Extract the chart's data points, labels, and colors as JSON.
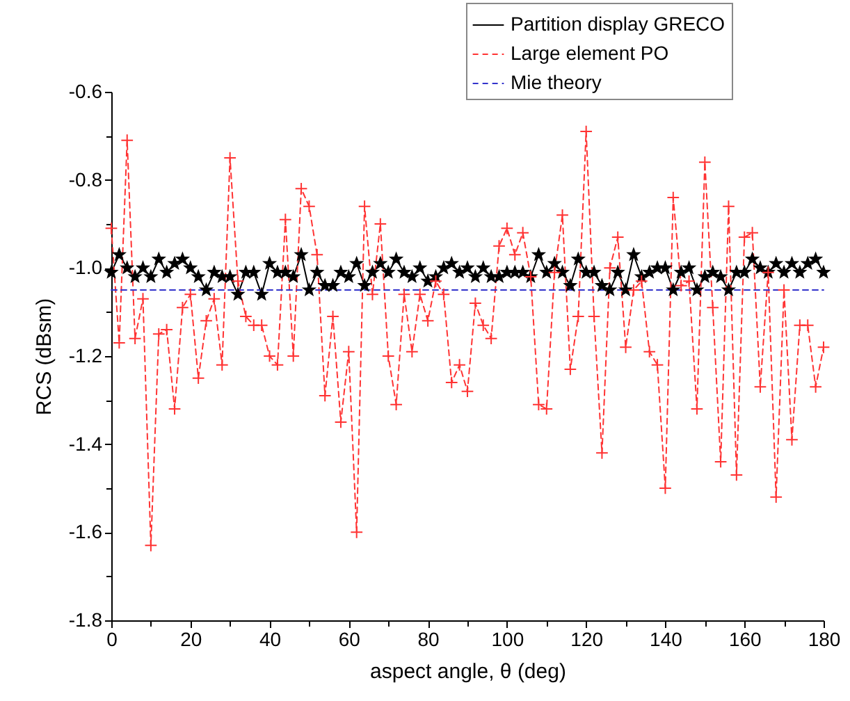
{
  "chart_data": {
    "type": "line",
    "xlabel": "aspect angle, θ (deg)",
    "ylabel": "RCS (dBsm)",
    "x": [
      0,
      2,
      4,
      6,
      8,
      10,
      12,
      14,
      16,
      18,
      20,
      22,
      24,
      26,
      28,
      30,
      32,
      34,
      36,
      38,
      40,
      42,
      44,
      46,
      48,
      50,
      52,
      54,
      56,
      58,
      60,
      62,
      64,
      66,
      68,
      70,
      72,
      74,
      76,
      78,
      80,
      82,
      84,
      86,
      88,
      90,
      92,
      94,
      96,
      98,
      100,
      102,
      104,
      106,
      108,
      110,
      112,
      114,
      116,
      118,
      120,
      122,
      124,
      126,
      128,
      130,
      132,
      134,
      136,
      138,
      140,
      142,
      144,
      146,
      148,
      150,
      152,
      154,
      156,
      158,
      160,
      162,
      164,
      166,
      168,
      170,
      172,
      174,
      176,
      178,
      180
    ],
    "series": [
      {
        "name": "Partition display GRECO",
        "color": "#000000",
        "marker": "star",
        "line_style": "solid",
        "values": [
          -1.01,
          -0.97,
          -1.0,
          -1.02,
          -1.0,
          -1.02,
          -0.98,
          -1.01,
          -0.99,
          -0.98,
          -1.0,
          -1.02,
          -1.05,
          -1.01,
          -1.02,
          -1.02,
          -1.06,
          -1.01,
          -1.01,
          -1.06,
          -0.99,
          -1.01,
          -1.01,
          -1.02,
          -0.97,
          -1.05,
          -1.01,
          -1.04,
          -1.04,
          -1.01,
          -1.02,
          -0.99,
          -1.04,
          -1.01,
          -0.99,
          -1.01,
          -0.98,
          -1.01,
          -1.02,
          -1.0,
          -1.03,
          -1.02,
          -1.0,
          -0.99,
          -1.01,
          -1.0,
          -1.02,
          -1.0,
          -1.02,
          -1.02,
          -1.01,
          -1.01,
          -1.01,
          -1.02,
          -0.97,
          -1.01,
          -0.99,
          -1.01,
          -1.04,
          -0.98,
          -1.01,
          -1.01,
          -1.04,
          -1.05,
          -1.01,
          -1.05,
          -0.97,
          -1.02,
          -1.01,
          -1.0,
          -1.0,
          -1.05,
          -1.01,
          -1.0,
          -1.05,
          -1.02,
          -1.01,
          -1.02,
          -1.05,
          -1.01,
          -1.01,
          -0.98,
          -1.0,
          -1.01,
          -0.99,
          -1.01,
          -0.99,
          -1.01,
          -0.99,
          -0.98,
          -1.01
        ]
      },
      {
        "name": "Large element PO",
        "color": "#ff3333",
        "marker": "cross",
        "line_style": "dashed",
        "values": [
          -0.91,
          -1.17,
          -0.71,
          -1.16,
          -1.07,
          -1.63,
          -1.15,
          -1.14,
          -1.32,
          -1.09,
          -1.06,
          -1.25,
          -1.12,
          -1.07,
          -1.22,
          -0.75,
          -1.03,
          -1.11,
          -1.13,
          -1.13,
          -1.2,
          -1.22,
          -0.89,
          -1.2,
          -0.82,
          -0.86,
          -0.97,
          -1.29,
          -1.11,
          -1.35,
          -1.19,
          -1.6,
          -0.86,
          -1.06,
          -0.9,
          -1.2,
          -1.31,
          -1.06,
          -1.19,
          -1.06,
          -1.12,
          -1.03,
          -1.06,
          -1.26,
          -1.22,
          -1.28,
          -1.08,
          -1.13,
          -1.16,
          -0.95,
          -0.91,
          -0.97,
          -0.92,
          -1.02,
          -1.31,
          -1.32,
          -1.01,
          -0.88,
          -1.23,
          -1.11,
          -0.69,
          -1.11,
          -1.42,
          -1.0,
          -0.93,
          -1.18,
          -1.05,
          -1.03,
          -1.19,
          -1.22,
          -1.5,
          -0.84,
          -1.04,
          -1.03,
          -1.32,
          -0.76,
          -1.09,
          -1.44,
          -0.86,
          -1.47,
          -0.93,
          -0.92,
          -1.27,
          -1.01,
          -1.52,
          -1.05,
          -1.39,
          -1.13,
          -1.13,
          -1.27,
          -1.18
        ]
      },
      {
        "name": "Mie theory",
        "color": "#3333cc",
        "marker": "none",
        "line_style": "dashed",
        "x": [
          0,
          180
        ],
        "values": [
          -1.05,
          -1.05
        ]
      }
    ],
    "xlim": [
      0,
      180
    ],
    "xticks": [
      0,
      {
        "value": 10,
        "label": null
      },
      20,
      {
        "value": 30,
        "label": null
      },
      40,
      {
        "value": 50,
        "label": null
      },
      60,
      {
        "value": 70,
        "label": null
      },
      80,
      {
        "value": 90,
        "label": null
      },
      100,
      {
        "value": 110,
        "label": null
      },
      120,
      {
        "value": 130,
        "label": null
      },
      140,
      {
        "value": 150,
        "label": null
      },
      160,
      {
        "value": 170,
        "label": null
      },
      180
    ],
    "ylim": [
      -1.8,
      -0.6
    ],
    "yticks": [
      {
        "value": -1.8,
        "label": "-1.8"
      },
      {
        "value": -1.7,
        "label": null
      },
      {
        "value": -1.6,
        "label": "-1.6"
      },
      {
        "value": -1.5,
        "label": null
      },
      {
        "value": -1.4,
        "label": "-1.4"
      },
      {
        "value": -1.3,
        "label": null
      },
      {
        "value": -1.2,
        "label": "-1.2"
      },
      {
        "value": -1.1,
        "label": null
      },
      {
        "value": -1.0,
        "label": "-1.0"
      },
      {
        "value": -0.9,
        "label": null
      },
      {
        "value": -0.8,
        "label": "-0.8"
      },
      {
        "value": -0.7,
        "label": null
      },
      {
        "value": -0.6,
        "label": "-0.6"
      }
    ],
    "grid": false,
    "legend": "top right"
  }
}
